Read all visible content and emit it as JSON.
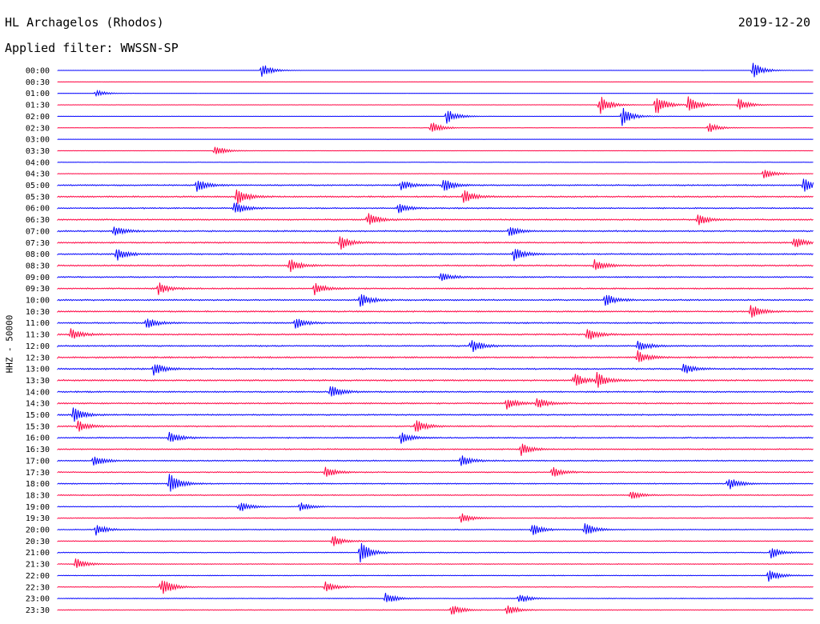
{
  "header": {
    "station": "HL Archagelos (Rhodos)",
    "filter": "Applied filter: WWSSN-SP",
    "date": "2019-12-20",
    "channel_label": "HHZ - 50000"
  },
  "colors": {
    "even_trace": "#0000ff",
    "odd_trace": "#ff0040",
    "background": "#ffffff"
  },
  "chart_data": {
    "type": "line",
    "title": "HL Archagelos (Rhodos)",
    "subtitle": "Applied filter: WWSSN-SP",
    "ylabel": "HHZ - 50000",
    "trace_start_labels": [
      "00:00",
      "00:30",
      "01:00",
      "01:30",
      "02:00",
      "02:30",
      "03:00",
      "03:30",
      "04:00",
      "04:30",
      "05:00",
      "05:30",
      "06:00",
      "06:30",
      "07:00",
      "07:30",
      "08:00",
      "08:30",
      "09:00",
      "09:30",
      "10:00",
      "10:30",
      "11:00",
      "11:30",
      "12:00",
      "12:30",
      "13:00",
      "13:30",
      "14:00",
      "14:30",
      "15:00",
      "15:30",
      "16:00",
      "16:30",
      "17:00",
      "17:30",
      "18:00",
      "18:30",
      "19:00",
      "19:30",
      "20:00",
      "20:30",
      "21:00",
      "21:30",
      "22:00",
      "22:30",
      "23:00",
      "23:30"
    ],
    "trace_colors": [
      "blue",
      "red"
    ],
    "trace_duration_minutes": 30,
    "noise_level": [
      0.02,
      0.02,
      0.02,
      0.03,
      0.03,
      0.03,
      0.02,
      0.03,
      0.03,
      0.05,
      0.12,
      0.13,
      0.12,
      0.13,
      0.13,
      0.13,
      0.13,
      0.13,
      0.12,
      0.12,
      0.13,
      0.13,
      0.13,
      0.13,
      0.13,
      0.14,
      0.14,
      0.14,
      0.13,
      0.13,
      0.13,
      0.12,
      0.12,
      0.11,
      0.11,
      0.1,
      0.1,
      0.09,
      0.08,
      0.08,
      0.08,
      0.08,
      0.08,
      0.07,
      0.07,
      0.07,
      0.07,
      0.07
    ],
    "events": [
      {
        "trace": 0,
        "minute": 8.1,
        "amplitude": 0.6
      },
      {
        "trace": 0,
        "minute": 27.6,
        "amplitude": 0.7
      },
      {
        "trace": 2,
        "minute": 1.5,
        "amplitude": 0.3
      },
      {
        "trace": 3,
        "minute": 21.5,
        "amplitude": 0.9
      },
      {
        "trace": 3,
        "minute": 23.7,
        "amplitude": 1.0
      },
      {
        "trace": 3,
        "minute": 25.0,
        "amplitude": 0.8
      },
      {
        "trace": 3,
        "minute": 27.0,
        "amplitude": 0.6
      },
      {
        "trace": 4,
        "minute": 15.4,
        "amplitude": 0.7
      },
      {
        "trace": 4,
        "minute": 22.4,
        "amplitude": 0.8
      },
      {
        "trace": 5,
        "minute": 14.8,
        "amplitude": 0.6
      },
      {
        "trace": 5,
        "minute": 25.8,
        "amplitude": 0.5
      },
      {
        "trace": 7,
        "minute": 6.2,
        "amplitude": 0.5
      },
      {
        "trace": 9,
        "minute": 28.0,
        "amplitude": 0.5
      },
      {
        "trace": 10,
        "minute": 5.5,
        "amplitude": 0.6
      },
      {
        "trace": 10,
        "minute": 13.6,
        "amplitude": 0.5
      },
      {
        "trace": 10,
        "minute": 15.3,
        "amplitude": 0.6
      },
      {
        "trace": 10,
        "minute": 29.6,
        "amplitude": 0.7
      },
      {
        "trace": 11,
        "minute": 7.1,
        "amplitude": 0.7
      },
      {
        "trace": 11,
        "minute": 16.1,
        "amplitude": 0.6
      },
      {
        "trace": 12,
        "minute": 7.0,
        "amplitude": 0.6
      },
      {
        "trace": 12,
        "minute": 13.5,
        "amplitude": 0.5
      },
      {
        "trace": 13,
        "minute": 12.3,
        "amplitude": 0.6
      },
      {
        "trace": 13,
        "minute": 25.4,
        "amplitude": 0.5
      },
      {
        "trace": 14,
        "minute": 2.2,
        "amplitude": 0.5
      },
      {
        "trace": 14,
        "minute": 17.9,
        "amplitude": 0.5
      },
      {
        "trace": 15,
        "minute": 11.2,
        "amplitude": 0.6
      },
      {
        "trace": 15,
        "minute": 29.2,
        "amplitude": 0.5
      },
      {
        "trace": 16,
        "minute": 2.3,
        "amplitude": 0.6
      },
      {
        "trace": 16,
        "minute": 18.1,
        "amplitude": 0.6
      },
      {
        "trace": 17,
        "minute": 9.2,
        "amplitude": 0.6
      },
      {
        "trace": 17,
        "minute": 21.3,
        "amplitude": 0.5
      },
      {
        "trace": 18,
        "minute": 15.2,
        "amplitude": 0.4
      },
      {
        "trace": 19,
        "minute": 4.0,
        "amplitude": 0.5
      },
      {
        "trace": 19,
        "minute": 10.2,
        "amplitude": 0.5
      },
      {
        "trace": 20,
        "minute": 12.0,
        "amplitude": 0.6
      },
      {
        "trace": 20,
        "minute": 21.7,
        "amplitude": 0.6
      },
      {
        "trace": 21,
        "minute": 27.5,
        "amplitude": 0.6
      },
      {
        "trace": 22,
        "minute": 3.5,
        "amplitude": 0.5
      },
      {
        "trace": 22,
        "minute": 9.4,
        "amplitude": 0.5
      },
      {
        "trace": 23,
        "minute": 0.5,
        "amplitude": 0.5
      },
      {
        "trace": 23,
        "minute": 21.0,
        "amplitude": 0.6
      },
      {
        "trace": 24,
        "minute": 16.4,
        "amplitude": 0.6
      },
      {
        "trace": 24,
        "minute": 23.0,
        "amplitude": 0.5
      },
      {
        "trace": 25,
        "minute": 23.0,
        "amplitude": 0.6
      },
      {
        "trace": 26,
        "minute": 3.8,
        "amplitude": 0.6
      },
      {
        "trace": 26,
        "minute": 24.8,
        "amplitude": 0.5
      },
      {
        "trace": 27,
        "minute": 20.5,
        "amplitude": 0.6
      },
      {
        "trace": 27,
        "minute": 21.4,
        "amplitude": 0.6
      },
      {
        "trace": 28,
        "minute": 10.8,
        "amplitude": 0.6
      },
      {
        "trace": 29,
        "minute": 17.8,
        "amplitude": 0.5
      },
      {
        "trace": 29,
        "minute": 19.0,
        "amplitude": 0.5
      },
      {
        "trace": 30,
        "minute": 0.6,
        "amplitude": 0.7
      },
      {
        "trace": 31,
        "minute": 0.8,
        "amplitude": 0.5
      },
      {
        "trace": 31,
        "minute": 14.2,
        "amplitude": 0.6
      },
      {
        "trace": 32,
        "minute": 4.4,
        "amplitude": 0.5
      },
      {
        "trace": 32,
        "minute": 13.6,
        "amplitude": 0.5
      },
      {
        "trace": 33,
        "minute": 18.4,
        "amplitude": 0.5
      },
      {
        "trace": 34,
        "minute": 1.4,
        "amplitude": 0.5
      },
      {
        "trace": 34,
        "minute": 16.0,
        "amplitude": 0.5
      },
      {
        "trace": 35,
        "minute": 10.6,
        "amplitude": 0.5
      },
      {
        "trace": 35,
        "minute": 19.6,
        "amplitude": 0.5
      },
      {
        "trace": 36,
        "minute": 4.4,
        "amplitude": 1.0
      },
      {
        "trace": 36,
        "minute": 26.6,
        "amplitude": 0.6
      },
      {
        "trace": 37,
        "minute": 22.7,
        "amplitude": 0.4
      },
      {
        "trace": 38,
        "minute": 7.2,
        "amplitude": 0.5
      },
      {
        "trace": 38,
        "minute": 9.6,
        "amplitude": 0.4
      },
      {
        "trace": 39,
        "minute": 16.0,
        "amplitude": 0.5
      },
      {
        "trace": 40,
        "minute": 1.5,
        "amplitude": 0.5
      },
      {
        "trace": 40,
        "minute": 18.8,
        "amplitude": 0.6
      },
      {
        "trace": 40,
        "minute": 20.9,
        "amplitude": 0.6
      },
      {
        "trace": 41,
        "minute": 10.9,
        "amplitude": 0.5
      },
      {
        "trace": 42,
        "minute": 12.0,
        "amplitude": 1.0
      },
      {
        "trace": 42,
        "minute": 28.3,
        "amplitude": 0.5
      },
      {
        "trace": 43,
        "minute": 0.7,
        "amplitude": 0.5
      },
      {
        "trace": 44,
        "minute": 28.2,
        "amplitude": 0.6
      },
      {
        "trace": 45,
        "minute": 4.1,
        "amplitude": 0.9
      },
      {
        "trace": 45,
        "minute": 10.6,
        "amplitude": 0.5
      },
      {
        "trace": 46,
        "minute": 13.0,
        "amplitude": 0.5
      },
      {
        "trace": 46,
        "minute": 18.3,
        "amplitude": 0.4
      },
      {
        "trace": 47,
        "minute": 15.6,
        "amplitude": 0.5
      },
      {
        "trace": 47,
        "minute": 17.8,
        "amplitude": 0.5
      }
    ]
  }
}
